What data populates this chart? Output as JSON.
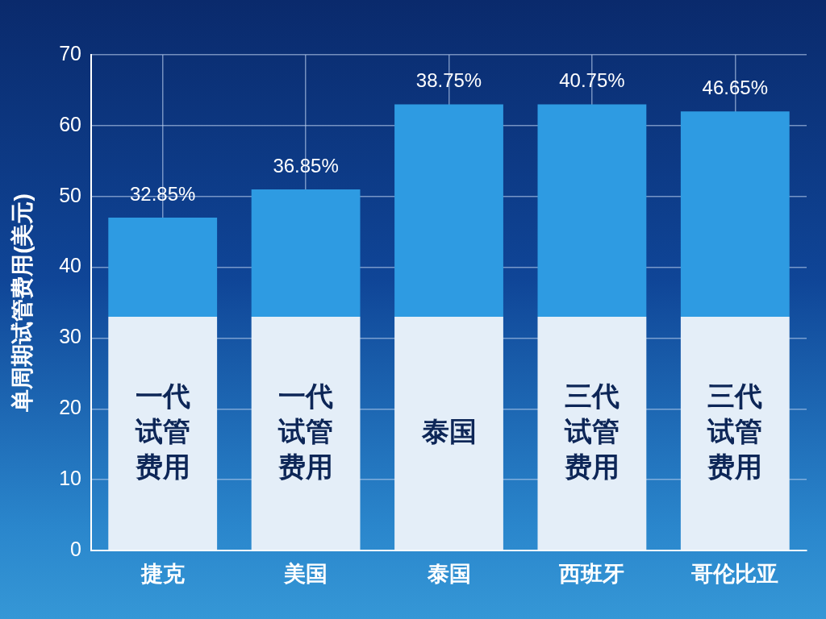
{
  "chart_data": {
    "type": "bar",
    "ylabel": "单周期试管费用(美元)",
    "categories": [
      "捷克",
      "美国",
      "泰国",
      "西班牙",
      "哥伦比亚"
    ],
    "stacked": true,
    "series": [
      {
        "color": "#e4eef8",
        "values": [
          33,
          33,
          33,
          33,
          33
        ],
        "value_labels": [
          "一代试管费用",
          "一代试管费用",
          "泰国",
          "三代试管费用",
          "三代试管费用"
        ]
      },
      {
        "color": "#2e9be2",
        "values": [
          14,
          18,
          30,
          30,
          29
        ]
      }
    ],
    "annotations": [
      {
        "text": "32.85%",
        "x": "捷克",
        "y": 47
      },
      {
        "text": "36.85%",
        "x": "美国",
        "y": 51
      },
      {
        "text": "38.75%",
        "x": "泰国",
        "y": 63
      },
      {
        "text": "40.75%",
        "x": "西班牙",
        "y": 63
      },
      {
        "text": "46.65%",
        "x": "哥伦比亚",
        "y": 62
      }
    ],
    "ylim": [
      0,
      70
    ],
    "yticks": [
      0,
      10,
      20,
      30,
      40,
      50,
      60,
      70
    ],
    "grid": true
  }
}
